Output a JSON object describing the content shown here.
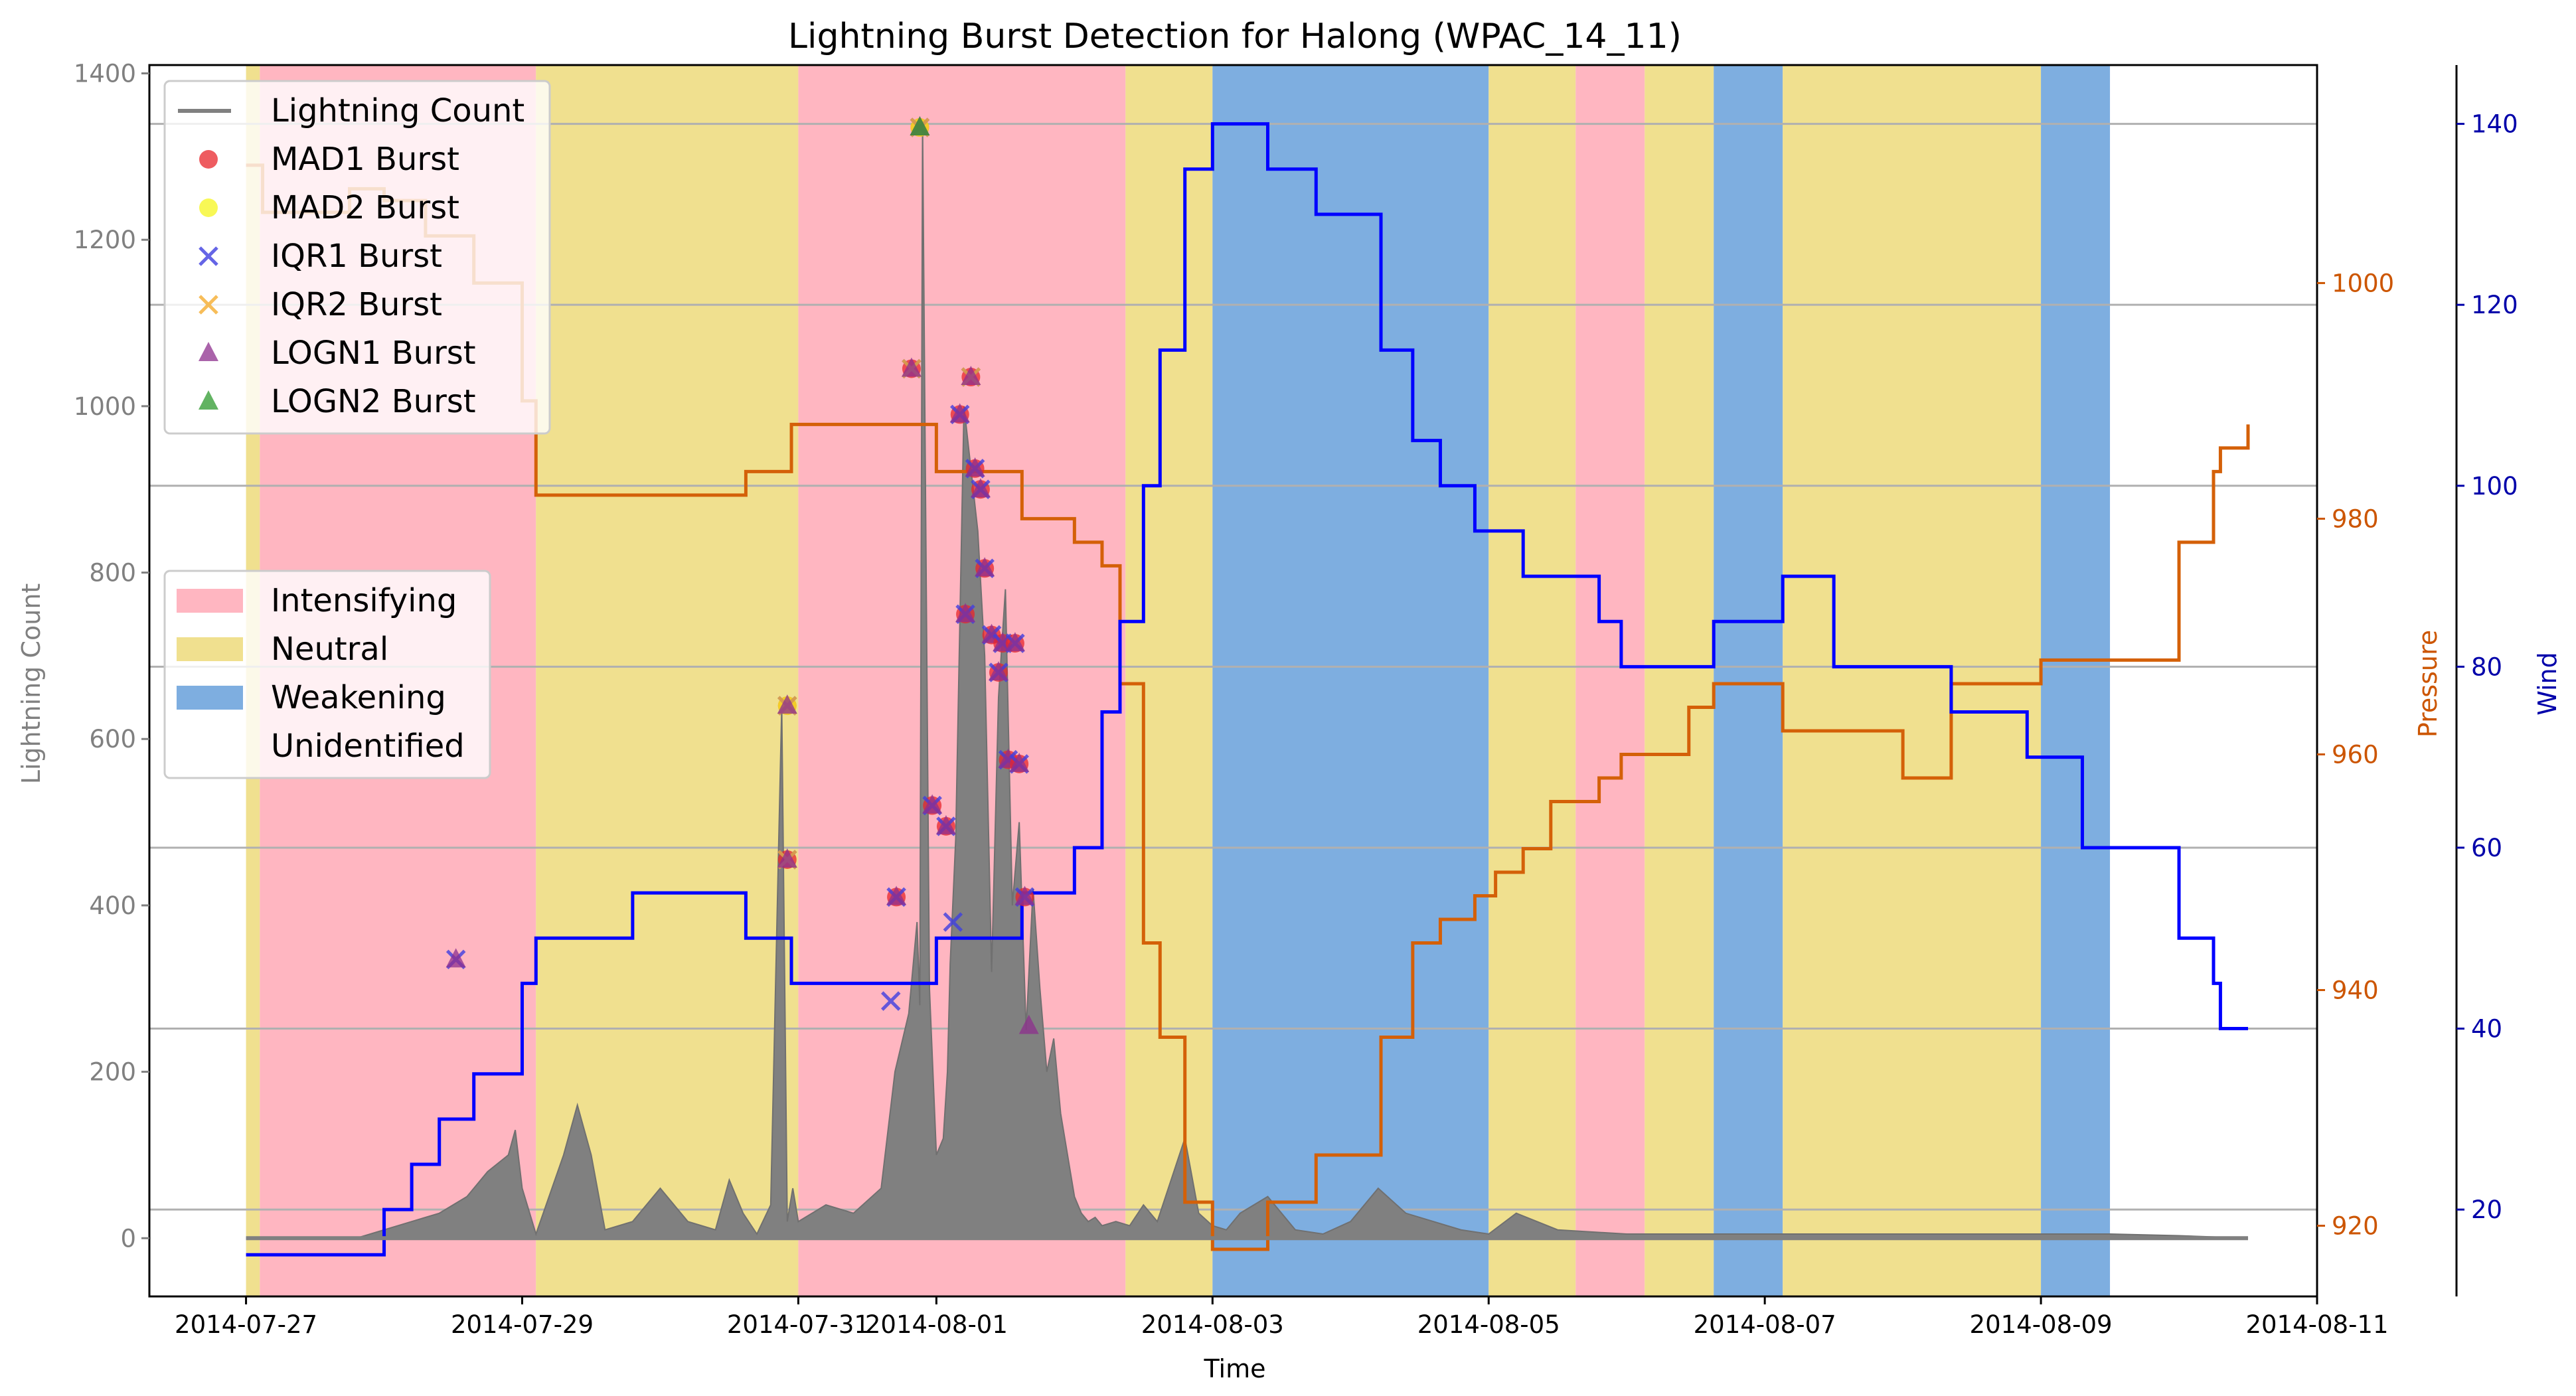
{
  "chart_data": {
    "type": "line",
    "title": "Lightning Burst Detection for Halong (WPAC_14_11)",
    "xlabel": "Time",
    "x_ticks": [
      "2014-07-27",
      "2014-07-29",
      "2014-07-31",
      "2014-08-01",
      "2014-08-03",
      "2014-08-05",
      "2014-08-07",
      "2014-08-09",
      "2014-08-11"
    ],
    "x_range_days": [
      -0.7,
      15.0
    ],
    "axes": {
      "lightning": {
        "label": "Lightning Count",
        "ylim": [
          -70,
          1410
        ],
        "ticks": [
          0,
          200,
          400,
          600,
          800,
          1000,
          1200,
          1400
        ],
        "color": "#808080"
      },
      "pressure": {
        "label": "Pressure",
        "ylim": [
          914.0,
          1018.5
        ],
        "ticks": [
          920,
          940,
          960,
          980,
          1000
        ],
        "color": "#cc5500"
      },
      "wind": {
        "label": "Wind",
        "ylim": [
          10.4,
          146.5
        ],
        "ticks": [
          20,
          40,
          60,
          80,
          100,
          120,
          140
        ],
        "color": "#0000aa"
      }
    },
    "grid": "horizontal (wind axis)",
    "phases": [
      {
        "start": 0.0,
        "end": 0.1,
        "phase": "Neutral"
      },
      {
        "start": 0.1,
        "end": 2.1,
        "phase": "Intensifying"
      },
      {
        "start": 2.1,
        "end": 4.0,
        "phase": "Neutral"
      },
      {
        "start": 4.0,
        "end": 6.37,
        "phase": "Intensifying"
      },
      {
        "start": 6.37,
        "end": 7.0,
        "phase": "Neutral"
      },
      {
        "start": 7.0,
        "end": 9.0,
        "phase": "Weakening"
      },
      {
        "start": 9.0,
        "end": 9.63,
        "phase": "Neutral"
      },
      {
        "start": 9.63,
        "end": 10.13,
        "phase": "Intensifying"
      },
      {
        "start": 10.13,
        "end": 10.63,
        "phase": "Neutral"
      },
      {
        "start": 10.63,
        "end": 11.13,
        "phase": "Weakening"
      },
      {
        "start": 11.13,
        "end": 13.0,
        "phase": "Neutral"
      },
      {
        "start": 13.0,
        "end": 13.5,
        "phase": "Weakening"
      },
      {
        "start": 13.5,
        "end": 14.5,
        "phase": "Unidentified"
      }
    ],
    "series": [
      {
        "name": "Lightning Count",
        "axis": "lightning",
        "kind": "area",
        "x": [
          0,
          0.8,
          1.0,
          1.2,
          1.4,
          1.6,
          1.75,
          1.9,
          1.95,
          2.0,
          2.1,
          2.3,
          2.4,
          2.5,
          2.6,
          2.8,
          3.0,
          3.2,
          3.4,
          3.5,
          3.6,
          3.7,
          3.8,
          3.88,
          3.92,
          3.96,
          4.0,
          4.2,
          4.4,
          4.6,
          4.7,
          4.8,
          4.86,
          4.88,
          4.9,
          4.95,
          5.0,
          5.05,
          5.08,
          5.1,
          5.14,
          5.2,
          5.3,
          5.35,
          5.4,
          5.45,
          5.5,
          5.55,
          5.6,
          5.65,
          5.7,
          5.75,
          5.8,
          5.85,
          5.9,
          5.95,
          6.0,
          6.05,
          6.1,
          6.15,
          6.2,
          6.3,
          6.4,
          6.5,
          6.6,
          6.8,
          6.9,
          7.0,
          7.1,
          7.2,
          7.4,
          7.6,
          7.8,
          8.0,
          8.2,
          8.4,
          8.6,
          8.8,
          9.0,
          9.2,
          9.5,
          10.0,
          11.0,
          12.0,
          13.0,
          13.5,
          14.0,
          14.5
        ],
        "y": [
          0,
          0,
          10,
          20,
          30,
          50,
          80,
          100,
          130,
          60,
          5,
          100,
          160,
          100,
          10,
          20,
          60,
          20,
          10,
          70,
          30,
          5,
          40,
          640,
          20,
          60,
          20,
          40,
          30,
          60,
          200,
          270,
          380,
          280,
          1340,
          300,
          100,
          120,
          200,
          330,
          480,
          1000,
          850,
          700,
          320,
          650,
          780,
          400,
          500,
          250,
          420,
          300,
          200,
          240,
          150,
          100,
          50,
          30,
          20,
          25,
          15,
          20,
          15,
          40,
          20,
          120,
          30,
          15,
          10,
          30,
          50,
          10,
          5,
          20,
          60,
          30,
          20,
          10,
          5,
          30,
          10,
          5,
          5,
          5,
          5,
          5,
          3,
          0
        ]
      },
      {
        "name": "Pressure",
        "axis": "pressure",
        "kind": "step",
        "x": [
          0,
          0.12,
          0.75,
          1.0,
          1.3,
          1.65,
          2.0,
          2.1,
          2.45,
          3.4,
          3.62,
          3.95,
          4.8,
          5.0,
          5.35,
          5.45,
          5.62,
          6.0,
          6.2,
          6.33,
          6.5,
          6.62,
          6.8,
          7.0,
          7.15,
          7.4,
          7.75,
          8.0,
          8.22,
          8.45,
          8.65,
          8.9,
          9.05,
          9.25,
          9.45,
          9.8,
          9.96,
          10.45,
          10.63,
          11.13,
          11.5,
          12.0,
          12.35,
          12.9,
          13.0,
          13.3,
          14.0,
          14.25,
          14.3,
          14.5
        ],
        "y": [
          1010,
          1006,
          1008,
          1007,
          1004,
          1000,
          990,
          982,
          982,
          982,
          984,
          988,
          988,
          984,
          984,
          984,
          980,
          978,
          976,
          966,
          944,
          936,
          922,
          918,
          918,
          922,
          926,
          926,
          936,
          944,
          946,
          948,
          950,
          952,
          956,
          958,
          960,
          964,
          966,
          962,
          962,
          958,
          966,
          966,
          968,
          968,
          978,
          984,
          986,
          988
        ]
      },
      {
        "name": "Wind",
        "axis": "wind",
        "kind": "step",
        "x": [
          0,
          0.75,
          1.0,
          1.2,
          1.4,
          1.65,
          2.0,
          2.1,
          2.4,
          2.8,
          3.0,
          3.4,
          3.62,
          3.95,
          4.8,
          5.0,
          5.35,
          5.45,
          5.62,
          6.0,
          6.2,
          6.33,
          6.5,
          6.62,
          6.8,
          7.0,
          7.15,
          7.4,
          7.75,
          8.0,
          8.22,
          8.45,
          8.65,
          8.9,
          9.05,
          9.25,
          9.45,
          9.8,
          9.96,
          10.45,
          10.63,
          11.13,
          11.5,
          12.0,
          12.35,
          12.9,
          13.0,
          13.3,
          13.9,
          14.0,
          14.25,
          14.3,
          14.5
        ],
        "y": [
          15,
          15,
          20,
          25,
          30,
          35,
          45,
          50,
          50,
          55,
          55,
          55,
          50,
          45,
          45,
          50,
          50,
          50,
          55,
          60,
          75,
          85,
          100,
          115,
          135,
          140,
          140,
          135,
          130,
          130,
          115,
          105,
          100,
          95,
          95,
          90,
          90,
          85,
          80,
          80,
          85,
          90,
          80,
          80,
          75,
          70,
          70,
          60,
          60,
          50,
          45,
          40,
          40
        ]
      }
    ],
    "bursts": [
      {
        "x": 1.52,
        "y": 335,
        "types": [
          "IQR1",
          "LOGN1"
        ]
      },
      {
        "x": 3.92,
        "y": 640,
        "types": [
          "MAD1",
          "MAD2",
          "IQR1",
          "IQR2",
          "LOGN1"
        ]
      },
      {
        "x": 3.92,
        "y": 455,
        "types": [
          "MAD1",
          "IQR1",
          "IQR2",
          "LOGN1"
        ]
      },
      {
        "x": 4.67,
        "y": 285,
        "types": [
          "IQR1"
        ]
      },
      {
        "x": 4.71,
        "y": 410,
        "types": [
          "MAD1",
          "IQR1",
          "LOGN1"
        ]
      },
      {
        "x": 4.82,
        "y": 1045,
        "types": [
          "MAD1",
          "IQR1",
          "IQR2",
          "LOGN1"
        ]
      },
      {
        "x": 4.88,
        "y": 1335,
        "types": [
          "MAD1",
          "MAD2",
          "IQR1",
          "IQR2",
          "LOGN1",
          "LOGN2"
        ]
      },
      {
        "x": 4.97,
        "y": 520,
        "types": [
          "MAD1",
          "IQR1",
          "LOGN1"
        ]
      },
      {
        "x": 5.07,
        "y": 495,
        "types": [
          "MAD1",
          "IQR1",
          "LOGN1"
        ]
      },
      {
        "x": 5.12,
        "y": 380,
        "types": [
          "IQR1"
        ]
      },
      {
        "x": 5.17,
        "y": 990,
        "types": [
          "MAD1",
          "IQR1",
          "LOGN1"
        ]
      },
      {
        "x": 5.21,
        "y": 750,
        "types": [
          "MAD1",
          "IQR1",
          "LOGN1"
        ]
      },
      {
        "x": 5.25,
        "y": 1035,
        "types": [
          "MAD1",
          "IQR1",
          "IQR2",
          "LOGN1"
        ]
      },
      {
        "x": 5.28,
        "y": 925,
        "types": [
          "MAD1",
          "IQR1",
          "LOGN1"
        ]
      },
      {
        "x": 5.32,
        "y": 900,
        "types": [
          "MAD1",
          "IQR1",
          "LOGN1"
        ]
      },
      {
        "x": 5.35,
        "y": 805,
        "types": [
          "MAD1",
          "IQR1",
          "LOGN1"
        ]
      },
      {
        "x": 5.4,
        "y": 725,
        "types": [
          "MAD1",
          "IQR1",
          "LOGN1"
        ]
      },
      {
        "x": 5.45,
        "y": 680,
        "types": [
          "MAD1",
          "IQR1",
          "LOGN1"
        ]
      },
      {
        "x": 5.48,
        "y": 715,
        "types": [
          "MAD1",
          "IQR1",
          "LOGN1"
        ]
      },
      {
        "x": 5.52,
        "y": 575,
        "types": [
          "MAD1",
          "IQR1",
          "LOGN1"
        ]
      },
      {
        "x": 5.57,
        "y": 715,
        "types": [
          "MAD1",
          "IQR1",
          "LOGN1"
        ]
      },
      {
        "x": 5.6,
        "y": 570,
        "types": [
          "MAD1",
          "IQR1",
          "LOGN1"
        ]
      },
      {
        "x": 5.64,
        "y": 410,
        "types": [
          "MAD1",
          "IQR1",
          "LOGN1"
        ]
      },
      {
        "x": 5.67,
        "y": 255,
        "types": [
          "LOGN1"
        ]
      }
    ],
    "legend_series": {
      "placement": "upper-left",
      "entries": [
        {
          "label": "Lightning Count",
          "marker": "line",
          "color": "#808080"
        },
        {
          "label": "MAD1 Burst",
          "marker": "circle",
          "color": "#e8262b"
        },
        {
          "label": "MAD2 Burst",
          "marker": "circle",
          "color": "#f5f51e"
        },
        {
          "label": "IQR1 Burst",
          "marker": "x",
          "color": "#3f3fe0"
        },
        {
          "label": "IQR2 Burst",
          "marker": "x",
          "color": "#f5ac30"
        },
        {
          "label": "LOGN1 Burst",
          "marker": "triangle",
          "color": "#8d2f8e"
        },
        {
          "label": "LOGN2 Burst",
          "marker": "triangle",
          "color": "#2e9a2e"
        }
      ]
    },
    "legend_phases": {
      "placement": "center-left",
      "entries": [
        {
          "label": "Intensifying",
          "color": "#ffb6c1"
        },
        {
          "label": "Neutral",
          "color": "#f0e08f"
        },
        {
          "label": "Weakening",
          "color": "#7eaee0"
        },
        {
          "label": "Unidentified",
          "color": "#ffffff"
        }
      ]
    }
  }
}
